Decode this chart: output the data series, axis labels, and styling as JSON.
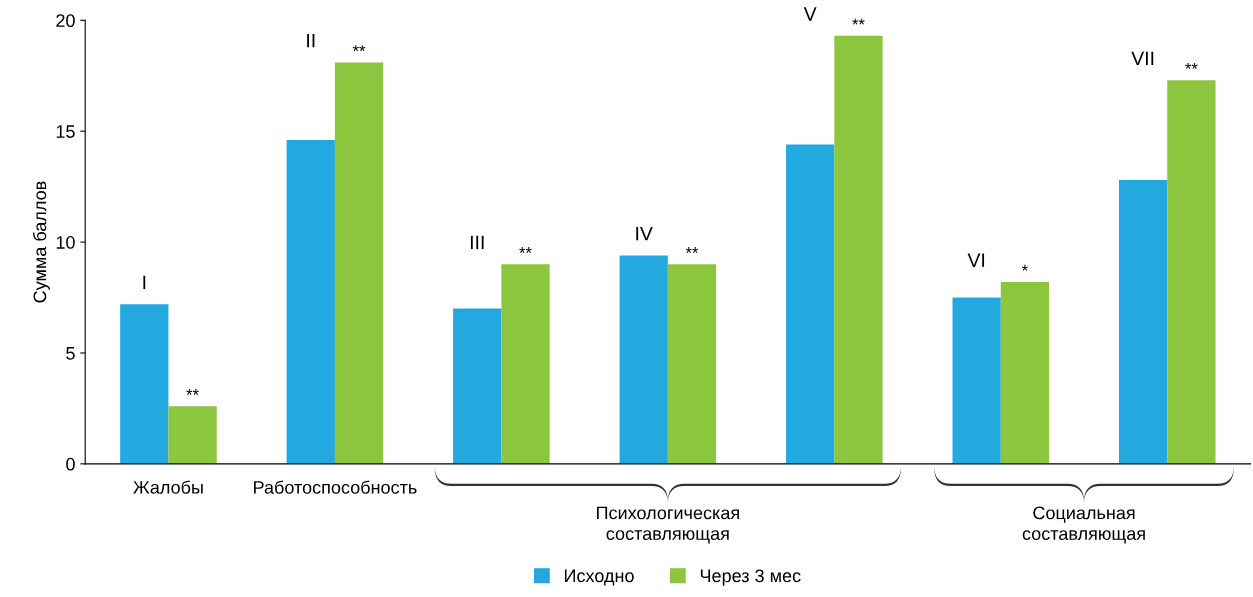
{
  "chart_data": {
    "type": "bar",
    "ylabel": "Сумма баллов",
    "categories": [
      "Жалобы",
      "Работоспособность",
      null,
      null,
      null,
      null,
      null
    ],
    "series": [
      {
        "name": "Исходно",
        "color": "#23a8e0",
        "values": [
          7.2,
          14.6,
          7.0,
          9.4,
          14.4,
          7.5,
          12.8
        ]
      },
      {
        "name": "Через 3 мес",
        "color": "#8cc63f",
        "values": [
          2.6,
          18.1,
          9.0,
          9.0,
          19.3,
          8.2,
          17.3
        ]
      }
    ],
    "annotations": [
      "I",
      "II",
      "III",
      "IV",
      "V",
      "VI",
      "VII",
      "**",
      "**",
      "**",
      "**",
      "**",
      "*",
      "**",
      "Психологическая\nсоставляющая",
      "Социальная\nсоставляющая"
    ],
    "ylim": [
      0,
      20
    ],
    "yticks": [
      0,
      5,
      10,
      15,
      20
    ],
    "grid": false,
    "legend": "bottom"
  }
}
